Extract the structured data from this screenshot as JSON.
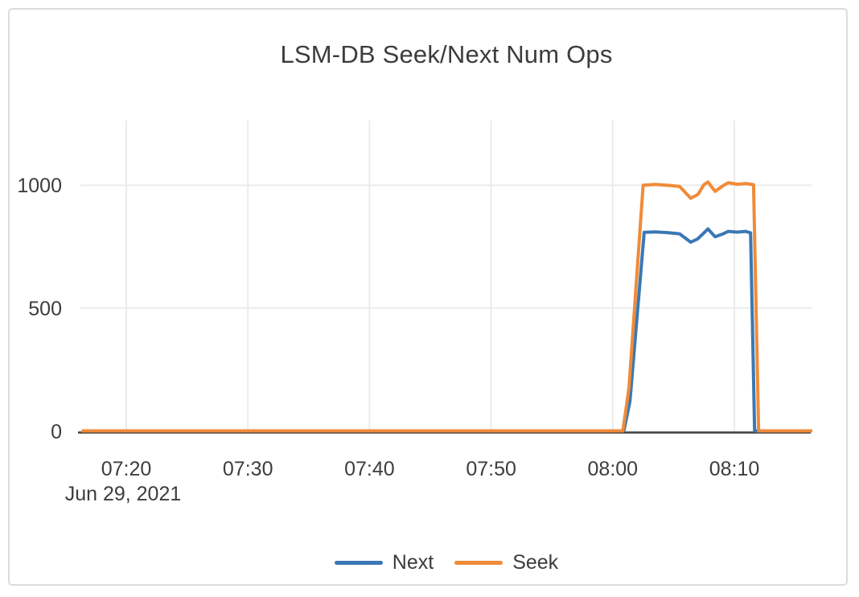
{
  "chart": {
    "title": "LSM-DB Seek/Next Num Ops",
    "y_ticks": [
      0,
      500,
      1000
    ],
    "x_ticks": [
      "07:20",
      "07:30",
      "07:40",
      "07:50",
      "08:00",
      "08:10"
    ],
    "date_label": "Jun 29, 2021",
    "colors": {
      "next": "#3a78b4",
      "seek": "#f08b39",
      "grid": "#ebebeb",
      "axis": "#444444",
      "text": "#3d3d3d",
      "border": "#dcdcdc"
    }
  },
  "chart_data": {
    "type": "line",
    "title": "LSM-DB Seek/Next Num Ops",
    "x_axis": {
      "date": "Jun 29, 2021",
      "range": [
        "07:16:20",
        "08:16:25"
      ],
      "ticks": [
        "07:20",
        "07:30",
        "07:40",
        "07:50",
        "08:00",
        "08:10"
      ]
    },
    "y_axis": {
      "ticks": [
        0,
        500,
        1000
      ],
      "range": [
        0,
        1265
      ]
    },
    "grid": true,
    "legend_position": "bottom-center",
    "series": [
      {
        "name": "Next",
        "color": "#3a78b4",
        "points": [
          [
            "07:16:20",
            0
          ],
          [
            "08:00:55",
            0
          ],
          [
            "08:01:25",
            120
          ],
          [
            "08:02:35",
            808
          ],
          [
            "08:03:30",
            810
          ],
          [
            "08:04:30",
            807
          ],
          [
            "08:05:30",
            802
          ],
          [
            "08:06:25",
            768
          ],
          [
            "08:07:00",
            782
          ],
          [
            "08:07:30",
            806
          ],
          [
            "08:07:50",
            822
          ],
          [
            "08:08:25",
            790
          ],
          [
            "08:09:05",
            802
          ],
          [
            "08:09:30",
            812
          ],
          [
            "08:10:15",
            809
          ],
          [
            "08:10:55",
            812
          ],
          [
            "08:11:20",
            806
          ],
          [
            "08:11:40",
            0
          ],
          [
            "08:16:25",
            0
          ]
        ]
      },
      {
        "name": "Seek",
        "color": "#f08b39",
        "points": [
          [
            "07:16:20",
            0
          ],
          [
            "08:00:50",
            0
          ],
          [
            "08:01:20",
            175
          ],
          [
            "08:02:30",
            1000
          ],
          [
            "08:03:30",
            1003
          ],
          [
            "08:04:30",
            1000
          ],
          [
            "08:05:30",
            995
          ],
          [
            "08:06:25",
            947
          ],
          [
            "08:07:00",
            962
          ],
          [
            "08:07:30",
            1002
          ],
          [
            "08:07:50",
            1013
          ],
          [
            "08:08:25",
            975
          ],
          [
            "08:09:05",
            998
          ],
          [
            "08:09:30",
            1010
          ],
          [
            "08:10:15",
            1004
          ],
          [
            "08:11:00",
            1007
          ],
          [
            "08:11:35",
            1002
          ],
          [
            "08:12:00",
            0
          ],
          [
            "08:16:25",
            0
          ]
        ]
      }
    ]
  }
}
